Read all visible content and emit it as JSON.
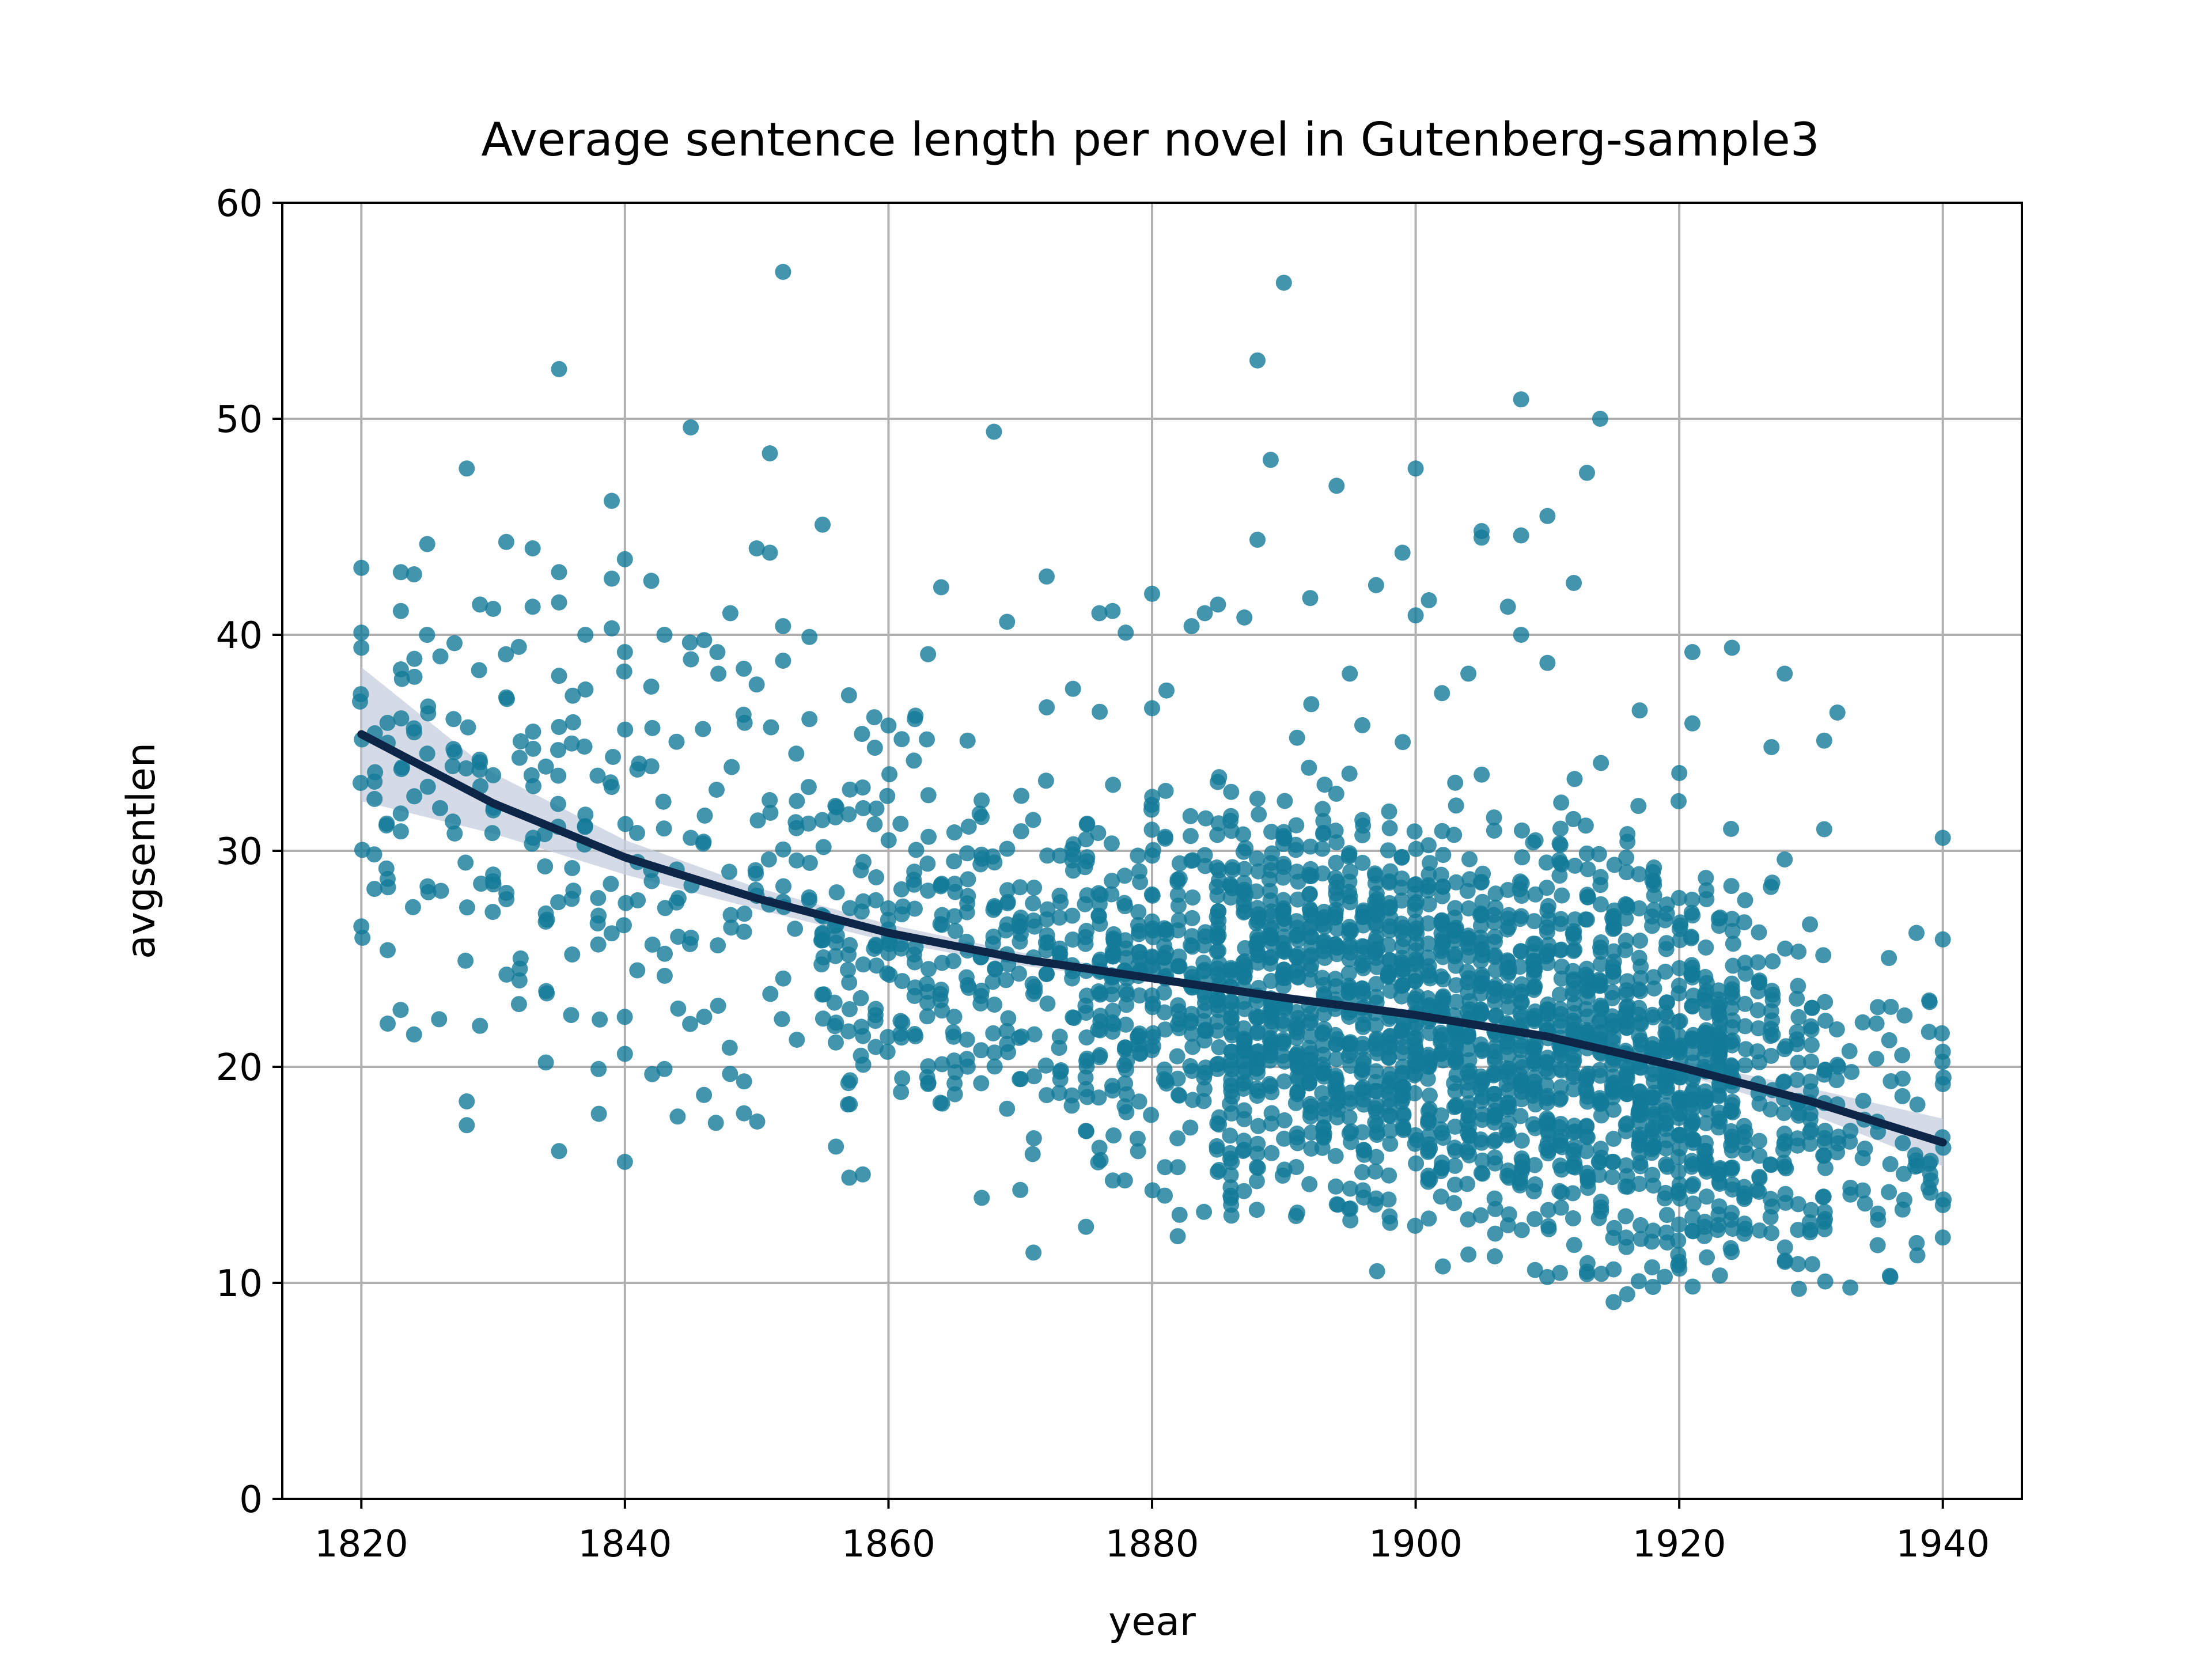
{
  "chart_data": {
    "type": "scatter",
    "title": "Average sentence length per novel in Gutenberg-sample3",
    "xlabel": "year",
    "ylabel": "avgsentlen",
    "xlim": [
      1814,
      1946
    ],
    "ylim": [
      0,
      60
    ],
    "xticks": [
      1820,
      1840,
      1860,
      1880,
      1900,
      1920,
      1940
    ],
    "yticks": [
      0,
      10,
      20,
      30,
      40,
      50,
      60
    ],
    "grid": true,
    "colors": {
      "points": "#137a99",
      "trend": "#0d2648",
      "band": "#c6cedd"
    },
    "points_visible": [
      [
        1820,
        40.1
      ],
      [
        1820,
        43.1
      ],
      [
        1820,
        39.4
      ],
      [
        1820,
        26.5
      ],
      [
        1821,
        33.2
      ],
      [
        1821,
        32.4
      ],
      [
        1822,
        28.7
      ],
      [
        1822,
        25.4
      ],
      [
        1822,
        22.0
      ],
      [
        1822,
        35.0
      ],
      [
        1823,
        42.9
      ],
      [
        1823,
        41.1
      ],
      [
        1823,
        38.4
      ],
      [
        1823,
        30.9
      ],
      [
        1824,
        42.8
      ],
      [
        1824,
        21.5
      ],
      [
        1825,
        44.2
      ],
      [
        1825,
        34.5
      ],
      [
        1826,
        39.0
      ],
      [
        1827,
        36.1
      ],
      [
        1828,
        47.7
      ],
      [
        1828,
        18.4
      ],
      [
        1828,
        17.3
      ],
      [
        1829,
        41.4
      ],
      [
        1829,
        21.9
      ],
      [
        1829,
        34.1
      ],
      [
        1830,
        33.5
      ],
      [
        1830,
        41.2
      ],
      [
        1830,
        28.9
      ],
      [
        1831,
        44.3
      ],
      [
        1831,
        37.1
      ],
      [
        1832,
        24.0
      ],
      [
        1833,
        44.0
      ],
      [
        1833,
        41.3
      ],
      [
        1834,
        33.9
      ],
      [
        1834,
        27.1
      ],
      [
        1834,
        20.2
      ],
      [
        1835,
        52.3
      ],
      [
        1835,
        42.9
      ],
      [
        1835,
        41.5
      ],
      [
        1835,
        38.1
      ],
      [
        1835,
        16.1
      ],
      [
        1836,
        25.2
      ],
      [
        1836,
        29.2
      ],
      [
        1837,
        40.0
      ],
      [
        1838,
        19.9
      ],
      [
        1838,
        27.0
      ],
      [
        1839,
        46.2
      ],
      [
        1839,
        42.6
      ],
      [
        1839,
        40.3
      ],
      [
        1840,
        43.5
      ],
      [
        1840,
        39.2
      ],
      [
        1840,
        15.6
      ],
      [
        1840,
        20.6
      ],
      [
        1842,
        42.5
      ],
      [
        1842,
        37.6
      ],
      [
        1843,
        40.0
      ],
      [
        1843,
        19.9
      ],
      [
        1844,
        17.7
      ],
      [
        1845,
        49.6
      ],
      [
        1845,
        30.6
      ],
      [
        1846,
        18.7
      ],
      [
        1848,
        41.0
      ],
      [
        1849,
        36.3
      ],
      [
        1850,
        44.0
      ],
      [
        1850,
        37.7
      ],
      [
        1851,
        48.4
      ],
      [
        1851,
        43.8
      ],
      [
        1852,
        56.8
      ],
      [
        1852,
        40.4
      ],
      [
        1852,
        38.8
      ],
      [
        1853,
        34.5
      ],
      [
        1854,
        39.9
      ],
      [
        1855,
        45.1
      ],
      [
        1857,
        37.2
      ],
      [
        1860,
        35.8
      ],
      [
        1862,
        36.1
      ],
      [
        1863,
        39.1
      ],
      [
        1864,
        42.2
      ],
      [
        1866,
        35.1
      ],
      [
        1868,
        49.4
      ],
      [
        1869,
        40.6
      ],
      [
        1870,
        14.3
      ],
      [
        1871,
        11.4
      ],
      [
        1872,
        42.7
      ],
      [
        1874,
        37.5
      ],
      [
        1876,
        41.0
      ],
      [
        1877,
        41.1
      ],
      [
        1878,
        40.1
      ],
      [
        1880,
        41.9
      ],
      [
        1880,
        36.6
      ],
      [
        1883,
        40.4
      ],
      [
        1884,
        41.0
      ],
      [
        1885,
        41.4
      ],
      [
        1887,
        40.8
      ],
      [
        1888,
        52.7
      ],
      [
        1888,
        44.4
      ],
      [
        1889,
        48.1
      ],
      [
        1890,
        56.3
      ],
      [
        1892,
        41.7
      ],
      [
        1894,
        46.9
      ],
      [
        1895,
        38.2
      ],
      [
        1897,
        42.3
      ],
      [
        1899,
        43.8
      ],
      [
        1900,
        47.7
      ],
      [
        1900,
        40.9
      ],
      [
        1901,
        41.6
      ],
      [
        1902,
        37.3
      ],
      [
        1904,
        38.2
      ],
      [
        1905,
        44.8
      ],
      [
        1905,
        44.5
      ],
      [
        1907,
        41.3
      ],
      [
        1908,
        50.9
      ],
      [
        1908,
        44.6
      ],
      [
        1908,
        40.0
      ],
      [
        1910,
        45.5
      ],
      [
        1910,
        38.7
      ],
      [
        1912,
        42.4
      ],
      [
        1913,
        47.5
      ],
      [
        1913,
        10.4
      ],
      [
        1914,
        50.0
      ],
      [
        1917,
        36.5
      ],
      [
        1920,
        33.6
      ],
      [
        1921,
        39.2
      ],
      [
        1921,
        35.9
      ],
      [
        1921,
        12.4
      ],
      [
        1924,
        39.4
      ],
      [
        1927,
        34.8
      ],
      [
        1928,
        38.2
      ],
      [
        1928,
        29.6
      ],
      [
        1931,
        35.1
      ],
      [
        1931,
        31.0
      ],
      [
        1932,
        36.4
      ],
      [
        1938,
        26.2
      ],
      [
        1939,
        23.0
      ],
      [
        1940,
        30.6
      ],
      [
        1940,
        25.9
      ],
      [
        1940,
        19.2
      ],
      [
        1940,
        12.1
      ],
      [
        1940,
        13.6
      ]
    ],
    "trend_line": {
      "x": [
        1820,
        1830,
        1840,
        1850,
        1860,
        1870,
        1880,
        1890,
        1900,
        1910,
        1920,
        1930,
        1940
      ],
      "y": [
        35.4,
        32.2,
        29.7,
        27.8,
        26.2,
        25.0,
        24.1,
        23.2,
        22.4,
        21.4,
        20.0,
        18.4,
        16.5
      ],
      "ci_upper": [
        38.5,
        33.6,
        30.5,
        28.3,
        26.6,
        25.3,
        24.3,
        23.4,
        22.6,
        21.6,
        20.3,
        19.0,
        17.6
      ],
      "ci_lower": [
        32.3,
        30.8,
        28.9,
        27.3,
        25.8,
        24.7,
        23.9,
        23.0,
        22.2,
        21.2,
        19.7,
        17.8,
        15.4
      ]
    }
  }
}
